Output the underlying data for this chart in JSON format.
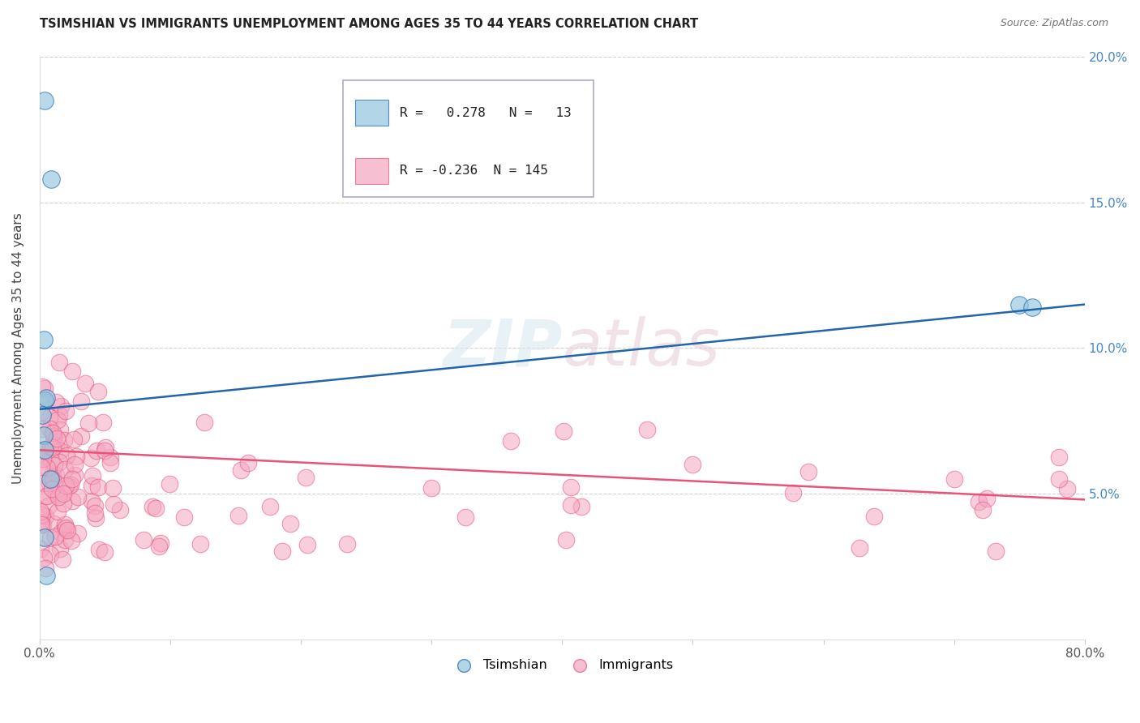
{
  "title": "TSIMSHIAN VS IMMIGRANTS UNEMPLOYMENT AMONG AGES 35 TO 44 YEARS CORRELATION CHART",
  "source": "Source: ZipAtlas.com",
  "ylabel": "Unemployment Among Ages 35 to 44 years",
  "xlim": [
    0.0,
    0.8
  ],
  "ylim": [
    0.0,
    0.2
  ],
  "tsimshian_R": 0.278,
  "tsimshian_N": 13,
  "immigrants_R": -0.236,
  "immigrants_N": 145,
  "tsimshian_color": "#92c5de",
  "immigrants_color": "#f4a6c0",
  "tsimshian_line_color": "#2166ac",
  "immigrants_line_color": "#e8537a",
  "background_color": "#ffffff",
  "legend_label_tsimshian": "Tsimshian",
  "legend_label_immigrants": "Immigrants",
  "tsimshian_x": [
    0.004,
    0.009,
    0.003,
    0.004,
    0.005,
    0.002,
    0.003,
    0.004,
    0.008,
    0.75,
    0.76,
    0.004,
    0.005
  ],
  "tsimshian_y": [
    0.185,
    0.158,
    0.103,
    0.082,
    0.083,
    0.077,
    0.07,
    0.065,
    0.055,
    0.115,
    0.114,
    0.035,
    0.022
  ],
  "imm_line_x0": 0.0,
  "imm_line_y0": 0.065,
  "imm_line_x1": 0.8,
  "imm_line_y1": 0.048,
  "tsim_line_x0": 0.0,
  "tsim_line_y0": 0.079,
  "tsim_line_x1": 0.8,
  "tsim_line_y1": 0.115
}
